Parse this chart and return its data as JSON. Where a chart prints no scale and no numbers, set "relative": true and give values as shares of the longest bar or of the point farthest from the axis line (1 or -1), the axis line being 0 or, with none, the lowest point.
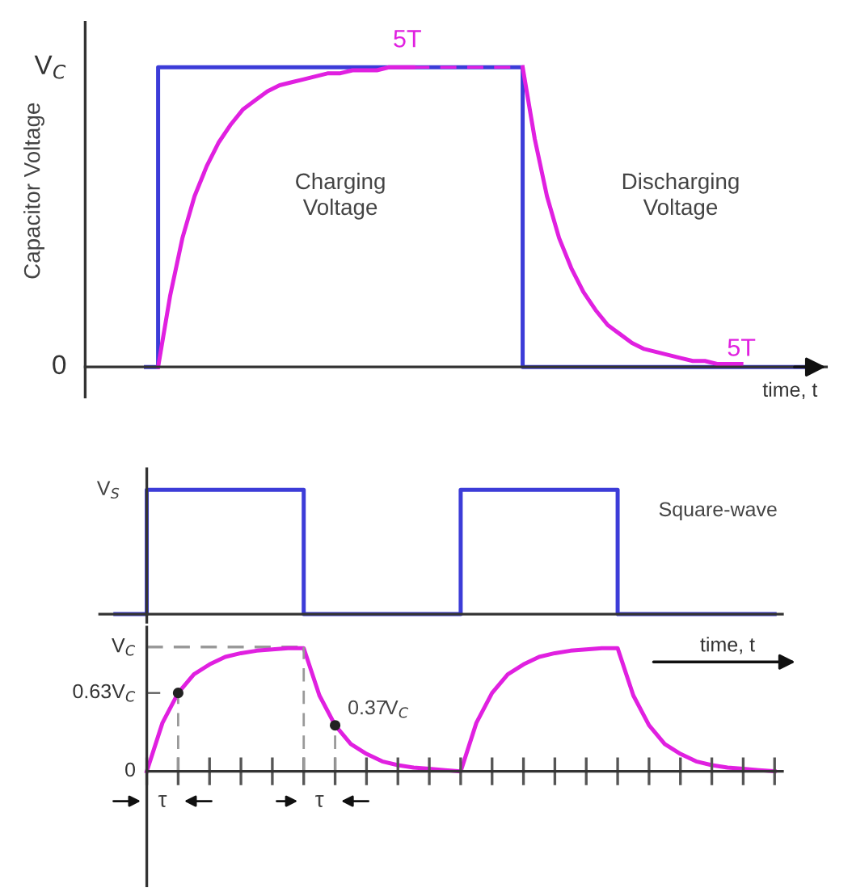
{
  "chart_data": [
    {
      "type": "line",
      "relative": true,
      "ylabel": "Capacitor Voltage",
      "xlabel": "time, t",
      "annotations": [
        "V$_{C}$",
        "0",
        "5T",
        "5T",
        "Charging\nVoltage",
        "Discharging\nVoltage"
      ],
      "categories": [
        null,
        null,
        null,
        null,
        null,
        null,
        null,
        null,
        null,
        null,
        null,
        null,
        null,
        null,
        null,
        null,
        null,
        null,
        null,
        null,
        null,
        null,
        null,
        null,
        null,
        null,
        null,
        null,
        null,
        null,
        null,
        null,
        null,
        null,
        null,
        null,
        null,
        null,
        null,
        null,
        null,
        null,
        null,
        null,
        null,
        null,
        null,
        null,
        null,
        null,
        null,
        null,
        null,
        null,
        null,
        null,
        null,
        null,
        null,
        null,
        null
      ],
      "series": [
        {
          "type": "step",
          "color": "#3c3cd8",
          "values": [
            null,
            null,
            null,
            null,
            null,
            0,
            1,
            1,
            1,
            1,
            1,
            1,
            1,
            1,
            1,
            1,
            1,
            1,
            1,
            1,
            1,
            1,
            1,
            1,
            1,
            1,
            1,
            1,
            1,
            1,
            1,
            1,
            1,
            1,
            1,
            1,
            0,
            0,
            0,
            0,
            0,
            0,
            0,
            0,
            0,
            0,
            0,
            0,
            0,
            0,
            0,
            0,
            0,
            0,
            0,
            0,
            0,
            0,
            0,
            0,
            0
          ]
        },
        {
          "color": "#e020e0",
          "values": [
            null,
            null,
            null,
            null,
            null,
            null,
            0,
            0.24,
            0.43,
            0.57,
            0.67,
            0.75,
            0.81,
            0.86,
            0.89,
            0.92,
            0.94,
            0.95,
            0.96,
            0.97,
            0.98,
            0.98,
            0.99,
            0.99,
            0.99,
            1,
            1,
            1,
            null,
            null,
            null,
            null,
            null,
            null,
            null,
            null,
            null,
            null,
            null,
            null,
            null,
            null,
            null,
            null,
            null,
            null,
            null,
            null,
            null,
            null,
            null,
            null,
            null,
            null,
            null,
            null,
            null,
            null,
            null,
            null,
            null
          ]
        },
        {
          "color": "#e020e0",
          "line_style": "dashed",
          "values": [
            null,
            null,
            null,
            null,
            null,
            null,
            null,
            null,
            null,
            null,
            null,
            null,
            null,
            null,
            null,
            null,
            null,
            null,
            null,
            null,
            null,
            null,
            null,
            null,
            null,
            null,
            null,
            1,
            1,
            1,
            1,
            1,
            1,
            1,
            1,
            1,
            1,
            null,
            null,
            null,
            null,
            null,
            null,
            null,
            null,
            null,
            null,
            null,
            null,
            null,
            null,
            null,
            null,
            null,
            null,
            null,
            null,
            null,
            null,
            null,
            null
          ]
        },
        {
          "color": "#e020e0",
          "values": [
            null,
            null,
            null,
            null,
            null,
            null,
            null,
            null,
            null,
            null,
            null,
            null,
            null,
            null,
            null,
            null,
            null,
            null,
            null,
            null,
            null,
            null,
            null,
            null,
            null,
            null,
            null,
            null,
            null,
            null,
            null,
            null,
            null,
            null,
            null,
            null,
            1,
            0.76,
            0.57,
            0.43,
            0.33,
            0.25,
            0.19,
            0.14,
            0.11,
            0.08,
            0.06,
            0.05,
            0.04,
            0.03,
            0.02,
            0.02,
            0.01,
            0.01,
            0.01,
            null,
            null,
            null,
            null,
            null,
            null
          ]
        }
      ]
    },
    {
      "type": "step",
      "relative": true,
      "annotations": [
        "V$_{S}$",
        "Square-wave"
      ],
      "categories": [
        null,
        null,
        null,
        null,
        null,
        null,
        null,
        null,
        null,
        null,
        null,
        null,
        null,
        null,
        null,
        null,
        null,
        null,
        null,
        null,
        null,
        null,
        null,
        null,
        null,
        null,
        null,
        null,
        null,
        null,
        null,
        null,
        null,
        null,
        null,
        null,
        null,
        null,
        null,
        null,
        null,
        null,
        null
      ],
      "series": [
        {
          "color": "#3c3cd8",
          "values": [
            0,
            0,
            1,
            1,
            1,
            1,
            1,
            1,
            1,
            1,
            1,
            1,
            0,
            0,
            0,
            0,
            0,
            0,
            0,
            0,
            0,
            0,
            1,
            1,
            1,
            1,
            1,
            1,
            1,
            1,
            1,
            1,
            0,
            0,
            0,
            0,
            0,
            0,
            0,
            0,
            0,
            0,
            0
          ]
        }
      ]
    },
    {
      "type": "line",
      "xlabel": "time, t",
      "ylim": [
        -0.92,
        1.16
      ],
      "yticks": [
        {
          "value": 0,
          "label": "0"
        },
        {
          "value": 0.63,
          "label": "0.63V$_{C}$"
        },
        {
          "value": 1,
          "label": "V$_{C}$"
        }
      ],
      "annotations": [
        "0.37V$_{C}$",
        "τ",
        "τ"
      ],
      "categories": [
        null,
        null,
        null,
        null,
        null,
        null,
        null,
        null,
        null,
        null,
        null,
        null,
        null,
        null,
        null,
        null,
        null,
        null,
        null,
        null,
        null,
        null,
        null,
        null,
        null,
        null,
        null,
        null,
        null,
        null,
        null,
        null,
        null,
        null,
        null,
        null,
        null,
        null,
        null,
        null,
        null,
        null,
        null
      ],
      "series": [
        {
          "color": "#999999",
          "line_style": "dashed",
          "values": [
            null,
            null,
            1,
            1,
            1,
            1,
            1,
            1,
            1,
            1,
            1,
            1,
            1,
            null,
            null,
            null,
            null,
            null,
            null,
            null,
            null,
            null,
            null,
            null,
            null,
            null,
            null,
            null,
            null,
            null,
            null,
            null,
            null,
            null,
            null,
            null,
            null,
            null,
            null,
            null,
            null,
            null,
            null
          ]
        },
        {
          "color": "#e020e0",
          "values": [
            null,
            null,
            0,
            0.39,
            0.63,
            0.78,
            0.86,
            0.92,
            0.95,
            0.97,
            0.98,
            0.99,
            0.99,
            0.61,
            0.37,
            0.22,
            0.14,
            0.08,
            0.05,
            0.03,
            0.02,
            0.01,
            0,
            0.39,
            0.63,
            0.78,
            0.86,
            0.92,
            0.95,
            0.97,
            0.98,
            0.99,
            0.99,
            0.61,
            0.37,
            0.22,
            0.14,
            0.08,
            0.05,
            0.03,
            0.02,
            0.01,
            0
          ]
        },
        {
          "type": "scatter",
          "color": "#222222",
          "values": [
            null,
            null,
            null,
            null,
            0.63,
            null,
            null,
            null,
            null,
            null,
            null,
            null,
            null,
            null,
            0.37,
            null,
            null,
            null,
            null,
            null,
            null,
            null,
            null,
            null,
            null,
            null,
            null,
            null,
            null,
            null,
            null,
            null,
            null,
            null,
            null,
            null,
            null,
            null,
            null,
            null,
            null,
            null,
            null
          ]
        }
      ]
    }
  ]
}
